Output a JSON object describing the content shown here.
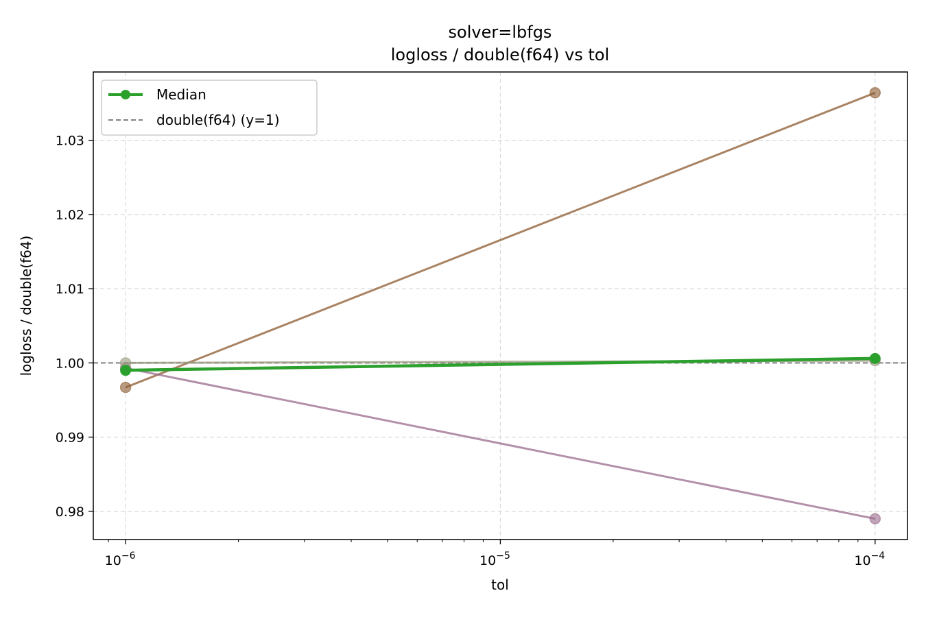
{
  "chart_data": {
    "type": "line",
    "title": "solver=lbfgs",
    "subtitle": "logloss / double(f64) vs tol",
    "xlabel": "tol",
    "ylabel": "logloss / double(f64)",
    "xscale": "log",
    "xlim": [
      8.2e-07,
      0.000122
    ],
    "ylim": [
      0.9762,
      1.0392
    ],
    "x": [
      1e-06,
      0.0001
    ],
    "x_ticks": [
      {
        "value": 1e-06,
        "base": "10",
        "exp": "−6"
      },
      {
        "value": 1e-05,
        "base": "10",
        "exp": "−5"
      },
      {
        "value": 0.0001,
        "base": "10",
        "exp": "−4"
      }
    ],
    "y_ticks": [
      {
        "value": 0.98,
        "label": "0.98"
      },
      {
        "value": 0.99,
        "label": "0.99"
      },
      {
        "value": 1.0,
        "label": "1.00"
      },
      {
        "value": 1.01,
        "label": "1.01"
      },
      {
        "value": 1.02,
        "label": "1.02"
      },
      {
        "value": 1.03,
        "label": "1.03"
      }
    ],
    "grid": true,
    "legend_position": "upper-left",
    "series": [
      {
        "color": "#8c5a2e",
        "values": [
          0.9967,
          1.0364
        ],
        "opacity": 0.75
      },
      {
        "color": "#9a6b8c",
        "values": [
          0.9993,
          0.979
        ],
        "opacity": 0.75
      },
      {
        "color": "#9a9a80",
        "values": [
          1.0,
          1.0003
        ],
        "opacity": 0.75
      },
      {
        "name": "Median",
        "color": "#2ca02c",
        "values": [
          0.999,
          1.0006
        ],
        "opacity": 1
      }
    ],
    "reference_line": {
      "name": "double(f64) (y=1)",
      "y": 1.0,
      "color": "#808080",
      "style": "dashed"
    }
  }
}
